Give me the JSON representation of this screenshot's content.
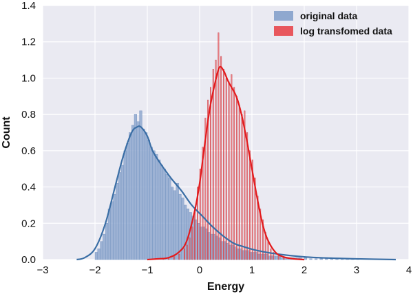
{
  "chart_data": {
    "type": "bar",
    "xlabel": "Energy",
    "ylabel": "Count",
    "xlim": [
      -3,
      4
    ],
    "ylim": [
      0,
      1.4
    ],
    "xticks": [
      -3,
      -2,
      -1,
      0,
      1,
      2,
      3,
      4
    ],
    "yticks": [
      0.0,
      0.2,
      0.4,
      0.6,
      0.8,
      1.0,
      1.2,
      1.4
    ],
    "ytick_labels": [
      "0.0",
      "0.2",
      "0.4",
      "0.6",
      "0.8",
      "1.0",
      "1.2",
      "1.4"
    ],
    "grid": true,
    "background_color": "#eaeaf2",
    "legend": {
      "placement": "top-right"
    },
    "series": [
      {
        "name": "original data",
        "bar_color": "#8fa8cf",
        "line_color": "#3a6ea5",
        "bin_width": 0.05,
        "x": [
          -2.0,
          -1.95,
          -1.9,
          -1.85,
          -1.8,
          -1.75,
          -1.7,
          -1.65,
          -1.6,
          -1.55,
          -1.5,
          -1.45,
          -1.4,
          -1.35,
          -1.3,
          -1.25,
          -1.2,
          -1.15,
          -1.1,
          -1.05,
          -1.0,
          -0.95,
          -0.9,
          -0.85,
          -0.8,
          -0.75,
          -0.7,
          -0.65,
          -0.6,
          -0.55,
          -0.5,
          -0.45,
          -0.4,
          -0.35,
          -0.3,
          -0.25,
          -0.2,
          -0.15,
          -0.1,
          -0.05,
          0.0,
          0.05,
          0.1,
          0.15,
          0.2,
          0.25,
          0.3,
          0.35,
          0.4,
          0.45,
          0.5,
          0.55,
          0.6,
          0.65,
          0.7,
          0.75,
          0.8,
          0.85,
          0.9,
          0.95,
          1.0,
          1.05,
          1.1,
          1.15,
          1.2,
          1.25,
          1.3,
          1.35,
          1.4,
          1.45,
          1.5,
          1.55,
          1.6,
          1.65,
          1.7,
          1.75,
          1.8,
          1.85,
          1.9,
          2.0,
          2.1,
          2.2,
          2.3,
          2.4,
          2.5,
          2.6,
          2.7,
          2.8,
          2.9,
          3.0
        ],
        "values": [
          0.04,
          0.06,
          0.1,
          0.14,
          0.2,
          0.28,
          0.32,
          0.36,
          0.42,
          0.48,
          0.52,
          0.6,
          0.64,
          0.7,
          0.74,
          0.8,
          0.76,
          0.82,
          0.72,
          0.7,
          0.66,
          0.62,
          0.6,
          0.58,
          0.55,
          0.52,
          0.5,
          0.47,
          0.45,
          0.4,
          0.38,
          0.42,
          0.36,
          0.34,
          0.3,
          0.28,
          0.26,
          0.24,
          0.22,
          0.2,
          0.18,
          0.18,
          0.17,
          0.15,
          0.14,
          0.14,
          0.13,
          0.12,
          0.1,
          0.1,
          0.09,
          0.08,
          0.08,
          0.07,
          0.06,
          0.06,
          0.05,
          0.05,
          0.05,
          0.04,
          0.04,
          0.04,
          0.03,
          0.03,
          0.03,
          0.03,
          0.02,
          0.02,
          0.02,
          0.02,
          0.02,
          0.01,
          0.01,
          0.01,
          0.01,
          0.01,
          0.01,
          0.01,
          0.01,
          0.01,
          0.005,
          0.005,
          0.005,
          0.005,
          0.005,
          0.005,
          0.004,
          0.004,
          0.003,
          0.003
        ],
        "kde_x": [
          -2.35,
          -2.2,
          -2.0,
          -1.8,
          -1.6,
          -1.45,
          -1.3,
          -1.2,
          -1.12,
          -1.0,
          -0.9,
          -0.75,
          -0.55,
          -0.35,
          -0.15,
          0.05,
          0.25,
          0.45,
          0.65,
          0.85,
          1.1,
          1.5,
          2.0,
          2.5,
          3.0,
          3.75
        ],
        "kde_y": [
          0.0,
          0.01,
          0.06,
          0.2,
          0.42,
          0.58,
          0.7,
          0.73,
          0.73,
          0.68,
          0.6,
          0.53,
          0.45,
          0.38,
          0.3,
          0.24,
          0.18,
          0.13,
          0.09,
          0.07,
          0.05,
          0.03,
          0.015,
          0.008,
          0.004,
          0.0
        ]
      },
      {
        "name": "log transfomed data",
        "bar_color": "#e8575d",
        "line_color": "#e31a1c",
        "bin_width": 0.02,
        "x": [
          -0.7,
          -0.6,
          -0.5,
          -0.4,
          -0.3,
          -0.25,
          -0.2,
          -0.15,
          -0.1,
          -0.05,
          0.0,
          0.05,
          0.1,
          0.15,
          0.2,
          0.25,
          0.3,
          0.35,
          0.4,
          0.45,
          0.5,
          0.55,
          0.6,
          0.65,
          0.7,
          0.75,
          0.8,
          0.85,
          0.9,
          0.95,
          1.0,
          1.05,
          1.1,
          1.15,
          1.2,
          1.25,
          1.3,
          1.35,
          1.4,
          1.5,
          1.6
        ],
        "values": [
          0.005,
          0.01,
          0.02,
          0.03,
          0.06,
          0.08,
          0.12,
          0.18,
          0.28,
          0.4,
          0.5,
          0.62,
          0.78,
          0.88,
          0.95,
          1.05,
          1.1,
          1.25,
          1.12,
          1.05,
          1.0,
          0.98,
          1.02,
          0.95,
          0.9,
          0.85,
          0.8,
          0.82,
          0.7,
          0.6,
          0.55,
          0.45,
          0.35,
          0.28,
          0.22,
          0.15,
          0.1,
          0.06,
          0.04,
          0.02,
          0.01
        ],
        "kde_x": [
          -1.0,
          -0.8,
          -0.6,
          -0.4,
          -0.25,
          -0.1,
          0.0,
          0.1,
          0.2,
          0.3,
          0.38,
          0.46,
          0.55,
          0.7,
          0.8,
          0.9,
          1.0,
          1.1,
          1.2,
          1.3,
          1.45,
          1.6,
          1.8,
          2.0
        ],
        "kde_y": [
          0.0,
          0.004,
          0.01,
          0.04,
          0.1,
          0.26,
          0.42,
          0.64,
          0.84,
          0.98,
          1.06,
          1.04,
          0.98,
          0.9,
          0.8,
          0.66,
          0.5,
          0.34,
          0.2,
          0.11,
          0.04,
          0.015,
          0.004,
          0.0
        ]
      }
    ]
  }
}
